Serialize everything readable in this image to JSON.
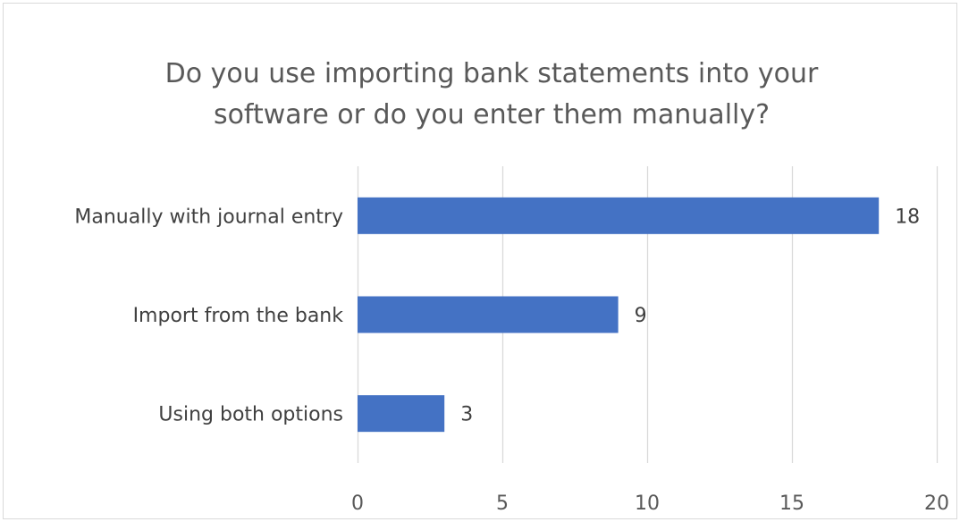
{
  "chart_data": {
    "type": "bar",
    "orientation": "horizontal",
    "title_lines": [
      "Do you use importing bank statements into your",
      "software or do you enter them manually?"
    ],
    "categories": [
      "Manually with journal entry",
      "Import from the bank",
      "Using both options"
    ],
    "values": [
      18,
      9,
      3
    ],
    "xlim": [
      0,
      20
    ],
    "x_ticks": [
      0,
      5,
      10,
      15,
      20
    ],
    "grid": "vertical",
    "legend": "none",
    "bar_color": "#4472c4",
    "grid_color": "#d9d9d9",
    "data_labels": true
  }
}
